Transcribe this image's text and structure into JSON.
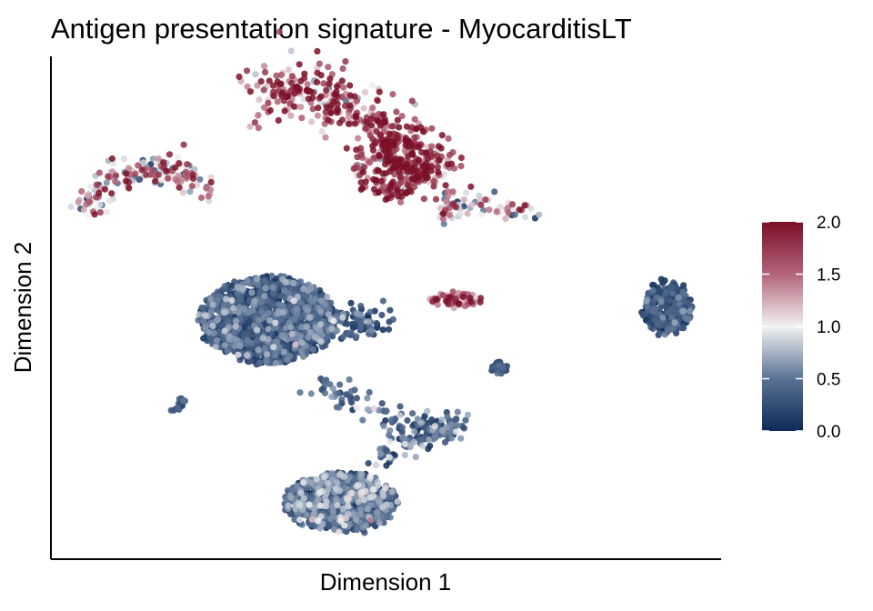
{
  "chart_data": {
    "type": "scatter",
    "title": "Antigen presentation signature - MyocarditisLT",
    "xlabel": "Dimension 1",
    "ylabel": "Dimension 2",
    "x_ticks_shown": false,
    "y_ticks_shown": false,
    "grid": false,
    "colorbar": {
      "range": [
        0.0,
        2.0
      ],
      "ticks": [
        "0.0",
        "0.5",
        "1.0",
        "1.5",
        "2.0"
      ],
      "tick_values": [
        0.0,
        0.5,
        1.0,
        1.5,
        2.0
      ],
      "colors": {
        "low": "#0d2a57",
        "mid": "#f2f2f2",
        "high": "#7a0f26"
      },
      "placement": "right"
    },
    "clusters": [
      {
        "name": "upper-left-arc",
        "mean_score": 1.2
      },
      {
        "name": "upper-center-large",
        "mean_score": 1.6
      },
      {
        "name": "upper-right-tail",
        "mean_score": 1.1
      },
      {
        "name": "center-main",
        "mean_score": 0.25
      },
      {
        "name": "center-small-red",
        "mean_score": 1.4
      },
      {
        "name": "right-cluster",
        "mean_score": 0.2
      },
      {
        "name": "small-center-blob",
        "mean_score": 0.2
      },
      {
        "name": "lower-connector",
        "mean_score": 0.35
      },
      {
        "name": "lower-main",
        "mean_score": 0.35
      },
      {
        "name": "small-left-streak",
        "mean_score": 0.25
      }
    ]
  }
}
